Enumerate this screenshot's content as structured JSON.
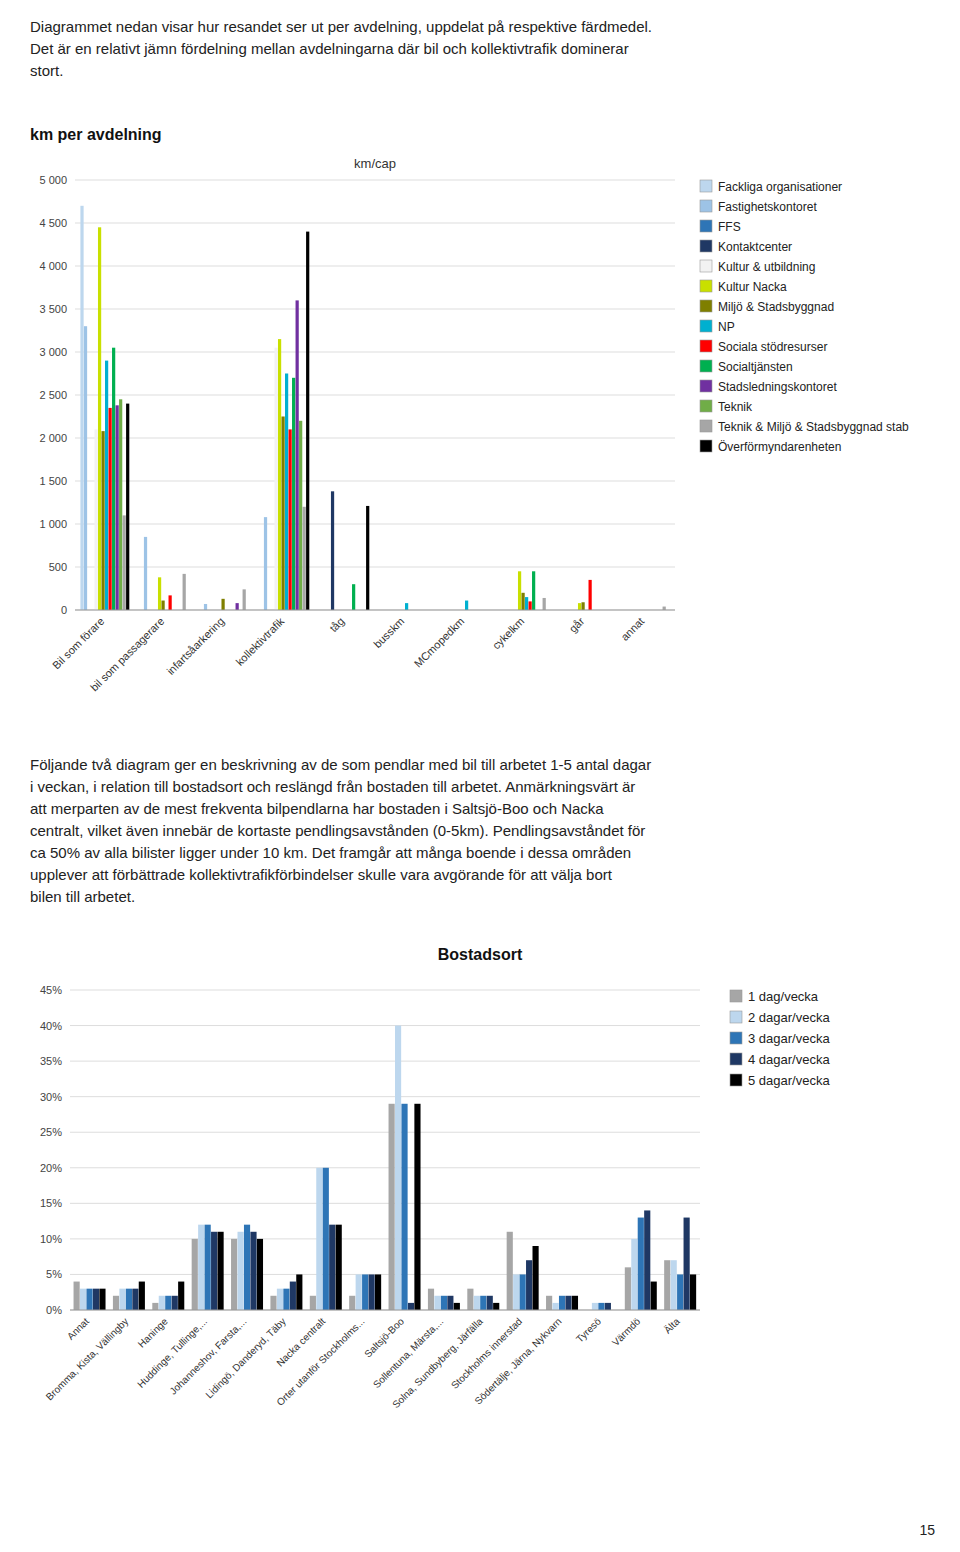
{
  "page_texts": {
    "intro": "Diagrammet nedan visar hur resandet ser ut per avdelning, uppdelat på respektive färdmedel.\nDet är en relativt jämn fördelning mellan avdelningarna där bil och kollektivtrafik dominerar\nstort.",
    "paragraph": "Följande två diagram ger en beskrivning av de som pendlar med bil till arbetet 1-5 antal dagar\ni veckan, i relation till bostadsort och reslängd från bostaden till arbetet. Anmärkningsvärt är\natt merparten av de mest frekventa bilpendlarna har bostaden i Saltsjö-Boo och Nacka\ncentralt, vilket även innebär de kortaste pendlingsavstånden (0-5km). Pendlingsavståndet för\nca 50% av alla bilister ligger under 10 km. Det framgår att många boende i dessa områden\nupplever att förbättrade kollektivtrafikförbindelser skulle vara avgörande för att välja bort\nbilen till arbetet.",
    "page_number": "15"
  },
  "chart_data": [
    {
      "type": "bar",
      "title": "km per avdelning",
      "subtitle": "km/cap",
      "categories": [
        "Bil som förare",
        "bil som passagerare",
        "infartsåarkering",
        "kollektivtrafik",
        "tåg",
        "busskm",
        "MCmopedkm",
        "cykelkm",
        "går",
        "annat"
      ],
      "series": [
        {
          "name": "Fackliga organisationer",
          "color": "#bdd7ee",
          "values": [
            4700,
            0,
            0,
            0,
            0,
            0,
            0,
            0,
            0,
            0
          ]
        },
        {
          "name": "Fastighetskontoret",
          "color": "#9dc3e6",
          "values": [
            3300,
            850,
            70,
            1080,
            0,
            0,
            0,
            0,
            0,
            0
          ]
        },
        {
          "name": "FFS",
          "color": "#2e75b6",
          "values": [
            0,
            0,
            0,
            0,
            0,
            0,
            0,
            0,
            0,
            0
          ]
        },
        {
          "name": "Kontaktcenter",
          "color": "#1f3864",
          "values": [
            0,
            0,
            0,
            0,
            1380,
            0,
            0,
            0,
            0,
            0
          ]
        },
        {
          "name": "Kultur & utbildning",
          "color": "#f2f2f2",
          "values": [
            2100,
            0,
            0,
            3050,
            0,
            0,
            0,
            0,
            0,
            0
          ]
        },
        {
          "name": "Kultur Nacka",
          "color": "#c9e000",
          "values": [
            4450,
            380,
            0,
            3150,
            0,
            0,
            0,
            450,
            80,
            0
          ]
        },
        {
          "name": "Miljö & Stadsbyggnad",
          "color": "#7f7f00",
          "values": [
            2080,
            110,
            130,
            2250,
            0,
            0,
            0,
            200,
            90,
            0
          ]
        },
        {
          "name": "NP",
          "color": "#00b0d0",
          "values": [
            2900,
            0,
            0,
            2750,
            0,
            80,
            110,
            150,
            0,
            0
          ]
        },
        {
          "name": "Sociala stödresurser",
          "color": "#ff0000",
          "values": [
            2350,
            170,
            0,
            2100,
            0,
            0,
            0,
            100,
            350,
            0
          ]
        },
        {
          "name": "Socialtjänsten",
          "color": "#00b050",
          "values": [
            3050,
            0,
            0,
            2700,
            300,
            0,
            0,
            450,
            0,
            0
          ]
        },
        {
          "name": "Stadsledningskontoret",
          "color": "#7030a0",
          "values": [
            2380,
            0,
            80,
            3600,
            0,
            0,
            0,
            0,
            0,
            0
          ]
        },
        {
          "name": "Teknik",
          "color": "#70ad47",
          "values": [
            2450,
            0,
            0,
            2200,
            0,
            0,
            0,
            0,
            0,
            0
          ]
        },
        {
          "name": "Teknik & Miljö & Stadsbyggnad stab",
          "color": "#a6a6a6",
          "values": [
            1100,
            420,
            240,
            1200,
            0,
            0,
            0,
            140,
            0,
            40
          ]
        },
        {
          "name": "Överförmyndarenheten",
          "color": "#000000",
          "values": [
            2400,
            0,
            0,
            4400,
            1210,
            0,
            0,
            0,
            0,
            0
          ]
        }
      ],
      "ylim": [
        0,
        5000
      ],
      "yticks": [
        0,
        500,
        {
          "value": 1000,
          "label": "1 000"
        },
        {
          "value": 1500,
          "label": "1 500"
        },
        {
          "value": 2000,
          "label": "2 000"
        },
        {
          "value": 2500,
          "label": "2 500"
        },
        {
          "value": 3000,
          "label": "3 000"
        },
        {
          "value": 3500,
          "label": "3 500"
        },
        {
          "value": 4000,
          "label": "4 000"
        },
        {
          "value": 4500,
          "label": "4 500"
        },
        {
          "value": 5000,
          "label": "5 000"
        }
      ],
      "grid": true,
      "legend": "right"
    },
    {
      "type": "bar",
      "title": "Bostadsort",
      "categories": [
        "Annat",
        "Bromma, Kista, Vällingby",
        "Haninge",
        "Huddinge, Tullinge,...",
        "Johanneshov, Farsta,...",
        "Lidingö, Danderyd, Täby",
        "Nacka centralt",
        "Orter utanför Stockholms...",
        "Saltsjö-Boo",
        "Sollentuna, Märsta,...",
        "Solna, Sundbyberg, Järfälla",
        "Stockholms innerstad",
        "Södertälje, Järna, Nykvarn",
        "Tyresö",
        "Värmdö",
        "Älta"
      ],
      "series": [
        {
          "name": "1 dag/vecka",
          "color": "#a6a6a6",
          "values": [
            4,
            2,
            1,
            10,
            10,
            2,
            2,
            2,
            29,
            3,
            3,
            11,
            2,
            0,
            6,
            7
          ]
        },
        {
          "name": "2 dagar/vecka",
          "color": "#bdd7ee",
          "values": [
            3,
            3,
            2,
            12,
            11,
            3,
            20,
            5,
            40,
            2,
            2,
            5,
            1,
            1,
            10,
            7
          ]
        },
        {
          "name": "3 dagar/vecka",
          "color": "#2e75b6",
          "values": [
            3,
            3,
            2,
            12,
            12,
            3,
            20,
            5,
            29,
            2,
            2,
            5,
            2,
            1,
            13,
            5
          ]
        },
        {
          "name": "4 dagar/vecka",
          "color": "#1f3864",
          "values": [
            3,
            3,
            2,
            11,
            11,
            4,
            12,
            5,
            1,
            2,
            2,
            7,
            2,
            1,
            14,
            13
          ]
        },
        {
          "name": "5 dagar/vecka",
          "color": "#000000",
          "values": [
            3,
            4,
            4,
            11,
            10,
            5,
            12,
            5,
            29,
            1,
            1,
            9,
            2,
            0,
            4,
            5
          ]
        }
      ],
      "ylim": [
        0,
        45
      ],
      "yticks": [
        {
          "value": 0,
          "label": "0%"
        },
        {
          "value": 5,
          "label": "5%"
        },
        {
          "value": 10,
          "label": "10%"
        },
        {
          "value": 15,
          "label": "15%"
        },
        {
          "value": 20,
          "label": "20%"
        },
        {
          "value": 25,
          "label": "25%"
        },
        {
          "value": 30,
          "label": "30%"
        },
        {
          "value": 35,
          "label": "35%"
        },
        {
          "value": 40,
          "label": "40%"
        },
        {
          "value": 45,
          "label": "45%"
        }
      ],
      "grid": true,
      "legend": "right"
    }
  ]
}
